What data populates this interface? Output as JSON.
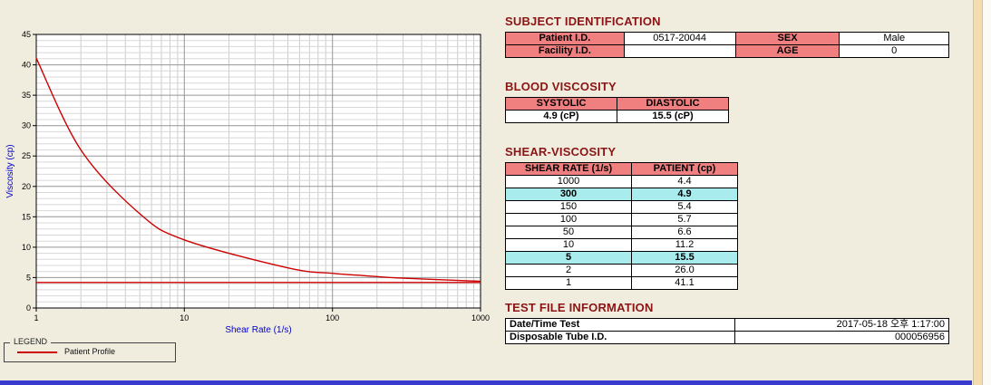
{
  "colors": {
    "background": "#f0eddf",
    "table_header_pink": "#f08080",
    "row_highlight_cyan": "#a9ecee",
    "section_title_maroon": "#8b1414",
    "series_red": "#cc0000",
    "axis_label_blue": "#0000cc",
    "bottom_bar_blue": "#3a3ace"
  },
  "chart_data": {
    "type": "line",
    "title": "",
    "xlabel": "Shear Rate (1/s)",
    "ylabel": "Viscosity (cp)",
    "x_scale": "log",
    "xlim": [
      1,
      1000
    ],
    "ylim": [
      0,
      45
    ],
    "x_ticks": [
      1,
      10,
      100,
      1000
    ],
    "y_ticks": [
      0,
      5,
      10,
      15,
      20,
      25,
      30,
      35,
      40,
      45
    ],
    "grid": true,
    "legend_position": "bottom-left-outside",
    "series": [
      {
        "name": "Patient Profile",
        "color": "#cc0000",
        "x": [
          1,
          2,
          5,
          10,
          50,
          100,
          150,
          300,
          1000
        ],
        "y": [
          41.1,
          26.0,
          15.5,
          11.2,
          6.6,
          5.7,
          5.4,
          4.9,
          4.4
        ]
      },
      {
        "name": "reference-line",
        "color": "#cc0000",
        "x": [
          1,
          1000
        ],
        "y": [
          4.2,
          4.2
        ]
      }
    ]
  },
  "legend": {
    "title": "LEGEND",
    "entries": [
      "Patient Profile"
    ]
  },
  "subject_identification": {
    "title": "SUBJECT IDENTIFICATION",
    "rows": [
      {
        "label1": "Patient I.D.",
        "value1": "0517-20044",
        "label2": "SEX",
        "value2": "Male"
      },
      {
        "label1": "Facility I.D.",
        "value1": "",
        "label2": "AGE",
        "value2": "0"
      }
    ]
  },
  "blood_viscosity": {
    "title": "BLOOD VISCOSITY",
    "headers": [
      "SYSTOLIC",
      "DIASTOLIC"
    ],
    "values": [
      "4.9 (cP)",
      "15.5 (cP)"
    ]
  },
  "shear_viscosity": {
    "title": "SHEAR-VISCOSITY",
    "headers": [
      "SHEAR RATE (1/s)",
      "PATIENT (cp)"
    ],
    "rows": [
      {
        "rate": "1000",
        "value": "4.4",
        "highlight": false
      },
      {
        "rate": "300",
        "value": "4.9",
        "highlight": true
      },
      {
        "rate": "150",
        "value": "5.4",
        "highlight": false
      },
      {
        "rate": "100",
        "value": "5.7",
        "highlight": false
      },
      {
        "rate": "50",
        "value": "6.6",
        "highlight": false
      },
      {
        "rate": "10",
        "value": "11.2",
        "highlight": false
      },
      {
        "rate": "5",
        "value": "15.5",
        "highlight": true
      },
      {
        "rate": "2",
        "value": "26.0",
        "highlight": false
      },
      {
        "rate": "1",
        "value": "41.1",
        "highlight": false
      }
    ]
  },
  "test_file_information": {
    "title": "TEST FILE INFORMATION",
    "rows": [
      {
        "label": "Date/Time Test",
        "value": "2017-05-18 오후 1:17:00"
      },
      {
        "label": "Disposable Tube I.D.",
        "value": "000056956"
      }
    ]
  }
}
